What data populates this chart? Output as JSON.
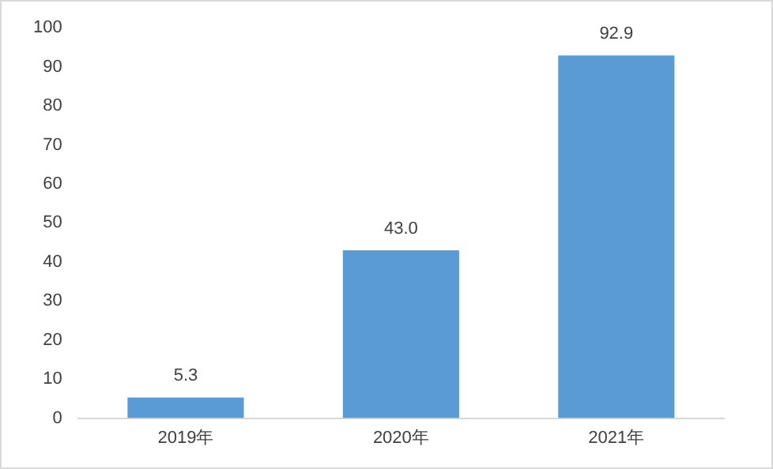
{
  "chart_data": {
    "type": "bar",
    "categories": [
      "2019年",
      "2020年",
      "2021年"
    ],
    "values": [
      5.3,
      43.0,
      92.9
    ],
    "value_labels": [
      "5.3",
      "43.0",
      "92.9"
    ],
    "color": "#5b9bd5",
    "ylim": [
      0,
      100
    ],
    "yticks": [
      0,
      10,
      20,
      30,
      40,
      50,
      60,
      70,
      80,
      90,
      100
    ],
    "grid": false,
    "legend": false
  }
}
